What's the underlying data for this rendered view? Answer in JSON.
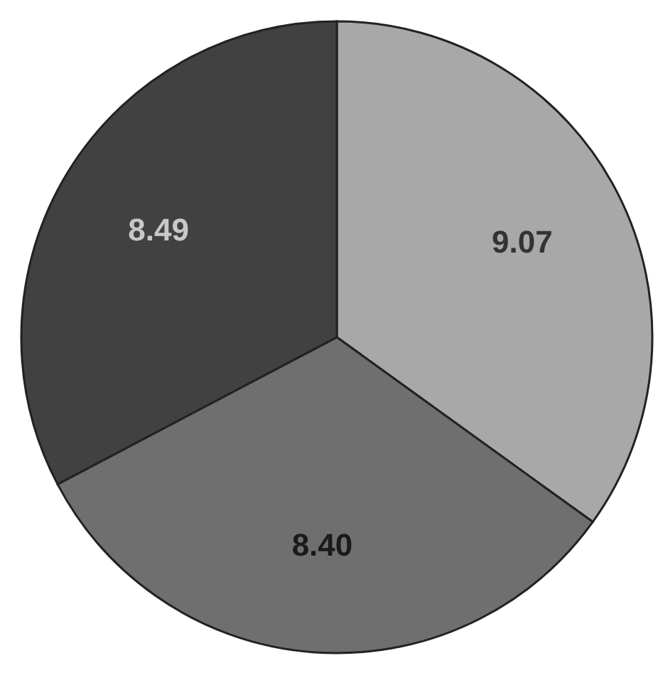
{
  "chart_data": {
    "type": "pie",
    "categories": [
      null,
      null,
      null
    ],
    "values": [
      9.07,
      8.4,
      8.49
    ],
    "value_labels": [
      "9.07",
      "8.40",
      "8.49"
    ],
    "colors": [
      "#a8a8a8",
      "#6f6f6f",
      "#414141"
    ]
  }
}
